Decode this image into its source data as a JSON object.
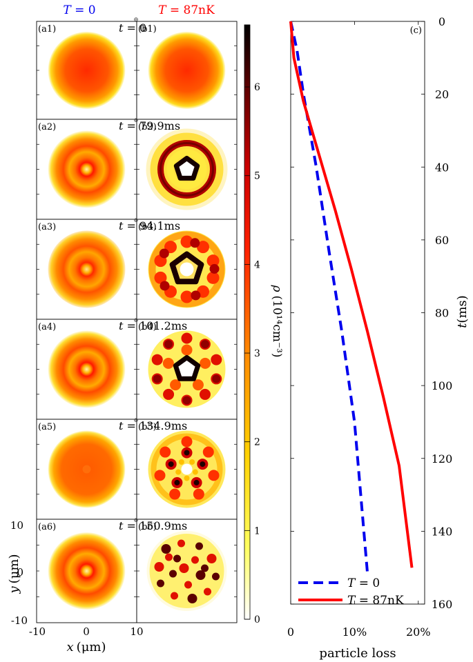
{
  "colors": {
    "t0": "#0000ee",
    "t87": "#ff0000",
    "axis": "#000000"
  },
  "headers": {
    "left_T": "T",
    "left_eq": " = 0",
    "right_T": "T",
    "right_eq": " = 87nK"
  },
  "time_prefix": "t =",
  "times": [
    "0",
    "79.9ms",
    "94.1ms",
    "101.2ms",
    "134.9ms",
    "150.9ms"
  ],
  "rows": [
    {
      "a": "(a1)",
      "b": "(b1)",
      "a_kind": "uniform",
      "b_kind": "uniform"
    },
    {
      "a": "(a2)",
      "b": "(b2)",
      "a_kind": "ring",
      "b_kind": "pentagon-ring"
    },
    {
      "a": "(a3)",
      "b": "(b3)",
      "a_kind": "ring-soft",
      "b_kind": "pentagon-blobs"
    },
    {
      "a": "(a4)",
      "b": "(b4)",
      "a_kind": "ring",
      "b_kind": "pentagon-dots"
    },
    {
      "a": "(a5)",
      "b": "(b5)",
      "a_kind": "uniform-soft",
      "b_kind": "flower"
    },
    {
      "a": "(a6)",
      "b": "(b6)",
      "a_kind": "ring",
      "b_kind": "speckle"
    }
  ],
  "axes_left": {
    "ylabel_y": "y",
    "ylabel_unit": "(μm)",
    "xlabel_x": "x",
    "xlabel_unit": "(μm)",
    "yticks": [
      "10",
      "0",
      "-10"
    ],
    "xticks": [
      "-10",
      "0",
      "10"
    ]
  },
  "colorbar": {
    "ticks": [
      "0",
      "1",
      "2",
      "3",
      "4",
      "5",
      "6"
    ],
    "max": 6.7,
    "label_rho": "ρ",
    "label_unit": "(10¹⁴cm⁻³)"
  },
  "panel_c_label": "(c)",
  "chart_data": {
    "type": "line",
    "xlabel": "particle loss",
    "ylabel": "t(ms)",
    "xlim": [
      0,
      0.21
    ],
    "ylim": [
      0,
      160
    ],
    "y_inverted": true,
    "xticks": [
      "0",
      "10%",
      "20%"
    ],
    "yticks": [
      "0",
      "20",
      "40",
      "60",
      "80",
      "100",
      "120",
      "140",
      "160"
    ],
    "legend_position": "bottom",
    "series": [
      {
        "name": "T = 0",
        "color": "#0000ee",
        "dash": true,
        "x": [
          0,
          0.01,
          0.02,
          0.04,
          0.06,
          0.08,
          0.1,
          0.12
        ],
        "y": [
          0,
          8,
          20,
          40,
          63,
          85,
          110,
          151
        ]
      },
      {
        "name": "T = 87nK",
        "color": "#ff0000",
        "dash": false,
        "x": [
          0,
          0.005,
          0.02,
          0.045,
          0.07,
          0.095,
          0.12,
          0.145,
          0.17,
          0.19
        ],
        "y": [
          0,
          10,
          22,
          37,
          52,
          68,
          85,
          103,
          122,
          150
        ]
      }
    ],
    "legend_labels": [
      {
        "T": "T",
        "eq": " = 0"
      },
      {
        "T": "T",
        "eq": " = 87nK"
      }
    ]
  }
}
